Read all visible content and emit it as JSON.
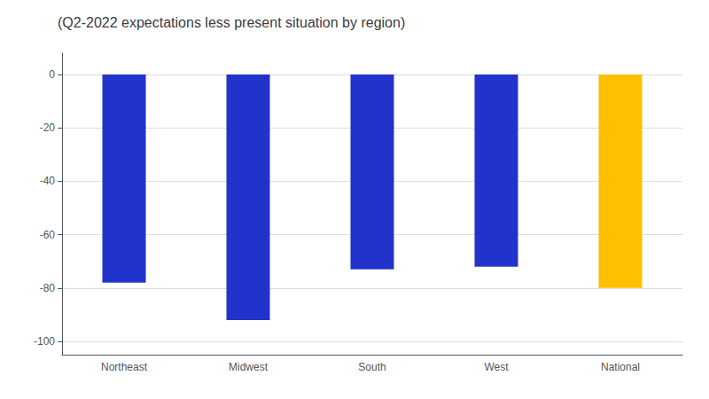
{
  "chart_data": {
    "type": "bar",
    "title": "(Q2-2022 expectations less present situation by region)",
    "categories": [
      "Northeast",
      "Midwest",
      "South",
      "West",
      "National"
    ],
    "values": [
      -78,
      -92,
      -73,
      -72,
      -80
    ],
    "colors": [
      "#2233CC",
      "#2233CC",
      "#2233CC",
      "#2233CC",
      "#FFC000"
    ],
    "ylim": [
      -105,
      8
    ],
    "yticks": [
      0,
      -20,
      -40,
      -60,
      -80,
      -100
    ],
    "grid": true
  }
}
